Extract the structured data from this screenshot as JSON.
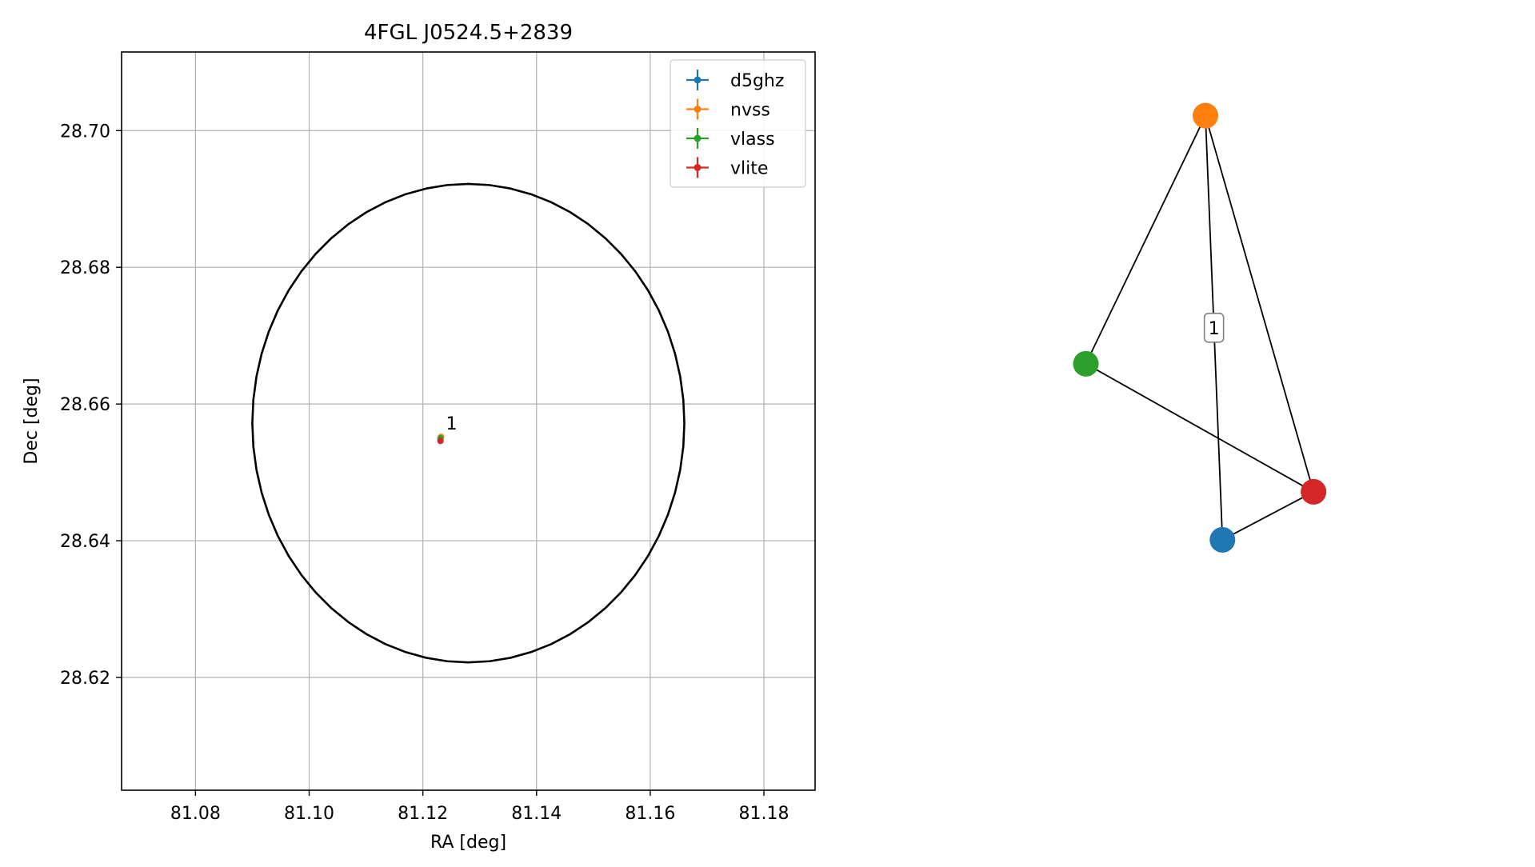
{
  "chart_data": [
    {
      "type": "scatter",
      "title": "4FGL J0524.5+2839",
      "xlabel": "RA [deg]",
      "ylabel": "Dec [deg]",
      "xlim": [
        81.067,
        81.189
      ],
      "ylim": [
        28.6035,
        28.7115
      ],
      "xticks": [
        81.08,
        81.1,
        81.12,
        81.14,
        81.16,
        81.18
      ],
      "xtick_labels": [
        "81.08",
        "81.10",
        "81.12",
        "81.14",
        "81.16",
        "81.18"
      ],
      "yticks": [
        28.62,
        28.64,
        28.66,
        28.68,
        28.7
      ],
      "ytick_labels": [
        "28.62",
        "28.64",
        "28.66",
        "28.68",
        "28.70"
      ],
      "grid": true,
      "legend_position": "top-right",
      "series": [
        {
          "name": "d5ghz",
          "color": "#1f77b4",
          "points": [
            {
              "x": 81.1231,
              "y": 28.6548
            }
          ]
        },
        {
          "name": "nvss",
          "color": "#ff7f0e",
          "points": [
            {
              "x": 81.1232,
              "y": 28.6552
            }
          ]
        },
        {
          "name": "vlass",
          "color": "#2ca02c",
          "points": [
            {
              "x": 81.1231,
              "y": 28.655
            }
          ]
        },
        {
          "name": "vlite",
          "color": "#d62728",
          "points": [
            {
              "x": 81.1231,
              "y": 28.6546
            }
          ]
        }
      ],
      "ellipse": {
        "center": {
          "x": 81.128,
          "y": 28.6572
        },
        "semi_axis_x": 0.038,
        "semi_axis_y": 0.035,
        "color": "#000000"
      },
      "annotations": [
        {
          "text": "1",
          "x": 81.1235,
          "y": 28.657
        }
      ]
    },
    {
      "type": "graph",
      "nodes": [
        {
          "id": "d5ghz",
          "color": "#1f77b4",
          "x": 0.597,
          "y": 0.15
        },
        {
          "id": "nvss",
          "color": "#ff7f0e",
          "x": 0.56,
          "y": 0.945
        },
        {
          "id": "vlass",
          "color": "#2ca02c",
          "x": 0.3,
          "y": 0.48
        },
        {
          "id": "vlite",
          "color": "#d62728",
          "x": 0.795,
          "y": 0.24
        }
      ],
      "edges": [
        {
          "source": "nvss",
          "target": "vlass"
        },
        {
          "source": "nvss",
          "target": "d5ghz"
        },
        {
          "source": "nvss",
          "target": "vlite"
        },
        {
          "source": "vlass",
          "target": "vlite"
        },
        {
          "source": "d5ghz",
          "target": "vlite"
        }
      ],
      "edge_labels": [
        {
          "source": "nvss",
          "target": "d5ghz",
          "text": "1"
        }
      ]
    }
  ]
}
